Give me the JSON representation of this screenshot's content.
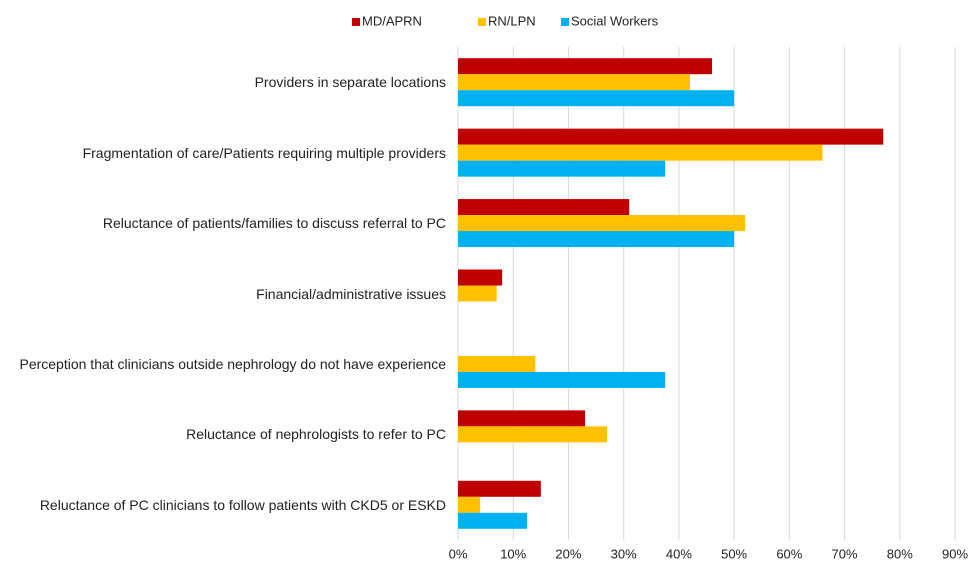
{
  "chart_data": {
    "type": "hbar",
    "categories": [
      "Providers in separate locations",
      "Fragmentation of care/Patients requiring multiple providers",
      "Reluctance of patients/families to discuss referral to PC",
      "Financial/administrative issues",
      "Perception that clinicians outside nephrology do not have experience",
      "Reluctance of nephrologists to refer to PC",
      "Reluctance of PC clinicians to follow patients with CKD5 or ESKD"
    ],
    "series": [
      {
        "name": "MD/APRN",
        "color": "#c00000",
        "values": [
          46,
          77,
          31,
          8,
          0,
          23,
          15
        ]
      },
      {
        "name": "RN/LPN",
        "color": "#ffc000",
        "values": [
          42,
          66,
          52,
          7,
          14,
          27,
          4
        ]
      },
      {
        "name": "Social Workers",
        "color": "#00b0f0",
        "values": [
          50,
          37.5,
          50,
          0,
          37.5,
          0,
          12.5
        ]
      }
    ],
    "xlim": [
      0,
      90
    ],
    "xticks": [
      {
        "value": 0,
        "label": "0%"
      },
      {
        "value": 10,
        "label": "10%"
      },
      {
        "value": 20,
        "label": "20%"
      },
      {
        "value": 30,
        "label": "30%"
      },
      {
        "value": 40,
        "label": "40%"
      },
      {
        "value": 50,
        "label": "50%"
      },
      {
        "value": 60,
        "label": "60%"
      },
      {
        "value": 70,
        "label": "70%"
      },
      {
        "value": 80,
        "label": "80%"
      },
      {
        "value": 90,
        "label": "90%"
      }
    ],
    "grid": true,
    "legend": "top"
  }
}
